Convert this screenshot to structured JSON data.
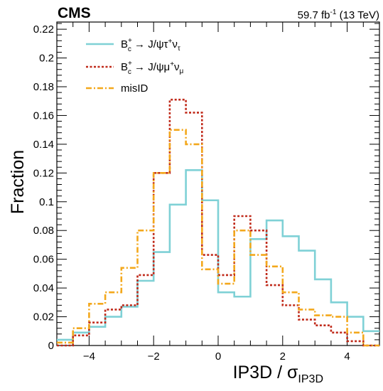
{
  "header": {
    "experiment": "CMS",
    "luminosity": "59.7 fb",
    "lumi_exp": "-1",
    "energy": " (13 TeV)"
  },
  "chart_data": {
    "type": "histogram",
    "xlabel": "IP3D / σ",
    "xlabel_sub": "IP3D",
    "ylabel": "Fraction",
    "xlim": [
      -5,
      5
    ],
    "ylim": [
      0,
      0.225
    ],
    "xticks": [
      -4,
      -2,
      0,
      2,
      4
    ],
    "yticks": [
      0,
      0.02,
      0.04,
      0.06,
      0.08,
      0.1,
      0.12,
      0.14,
      0.16,
      0.18,
      0.2,
      0.22
    ],
    "ytick_labels": [
      "0",
      "0.02",
      "0.04",
      "0.06",
      "0.08",
      "0.1",
      "0.12",
      "0.14",
      "0.16",
      "0.18",
      "0.2",
      "0.22"
    ],
    "bin_edges": [
      -5,
      -4.5,
      -4,
      -3.5,
      -3,
      -2.5,
      -2,
      -1.5,
      -1,
      -0.5,
      0,
      0.5,
      1,
      1.5,
      2,
      2.5,
      3,
      3.5,
      4,
      4.5,
      5
    ],
    "legend_position": "top-left",
    "series": [
      {
        "name": "tau",
        "legend": {
          "pre": "B",
          "sup": "+",
          "sub": "c",
          "mid": " → J/ψτ",
          "sup2": "+",
          "nu": "ν",
          "nusub": "τ"
        },
        "color": "#7fd1d6",
        "dash": "",
        "values": [
          0.004,
          0.009,
          0.013,
          0.02,
          0.027,
          0.045,
          0.065,
          0.098,
          0.122,
          0.101,
          0.037,
          0.034,
          0.074,
          0.087,
          0.076,
          0.066,
          0.046,
          0.03,
          0.02,
          0.01
        ]
      },
      {
        "name": "mu",
        "legend": {
          "pre": "B",
          "sup": "+",
          "sub": "c",
          "mid": " → J/ψμ",
          "sup2": "+",
          "nu": "ν",
          "nusub": "μ"
        },
        "color": "#c02a1a",
        "dash": "3,2.5",
        "values": [
          0.0,
          0.007,
          0.016,
          0.025,
          0.028,
          0.049,
          0.12,
          0.171,
          0.162,
          0.063,
          0.049,
          0.09,
          0.08,
          0.042,
          0.028,
          0.018,
          0.014,
          0.009,
          0.003,
          0.0
        ]
      },
      {
        "name": "misID",
        "legend": {
          "pre": "misID",
          "sup": "",
          "sub": "",
          "mid": "",
          "sup2": "",
          "nu": "",
          "nusub": ""
        },
        "color": "#f3a81c",
        "dash": "8,3,2,3",
        "values": [
          0.002,
          0.012,
          0.029,
          0.037,
          0.054,
          0.08,
          0.12,
          0.15,
          0.14,
          0.053,
          0.043,
          0.08,
          0.063,
          0.055,
          0.037,
          0.025,
          0.021,
          0.02,
          0.009,
          0.0
        ]
      }
    ]
  }
}
